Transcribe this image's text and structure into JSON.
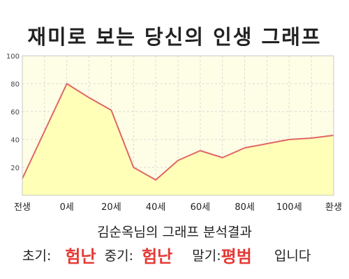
{
  "title": "재미로 보는 당신의 인생 그래프",
  "subtitle": "김순옥님의 그래프 분석결과",
  "result": {
    "early_label": "초기:",
    "early_value": "험난",
    "mid_label": "중기:",
    "mid_value": "험난",
    "late_label": "말기:",
    "late_value": "평범",
    "suffix": "입니다"
  },
  "colors": {
    "plot_background": "#fefee6",
    "area_fill": "#ffffb8",
    "line": "#e06666",
    "grid": "#d8d8d8",
    "accent_text": "#e53935"
  },
  "chart_data": {
    "type": "area",
    "x": [
      "전생",
      "",
      "0세",
      "",
      "20세",
      "",
      "40세",
      "",
      "60세",
      "",
      "80세",
      "",
      "100세",
      "",
      "환생"
    ],
    "values": [
      12,
      46,
      80,
      70,
      61,
      20,
      11,
      25,
      32,
      27,
      34,
      37,
      40,
      41,
      43
    ],
    "y_ticks": [
      20,
      40,
      60,
      80,
      100
    ],
    "ylim": [
      0,
      100
    ],
    "grid": true
  }
}
